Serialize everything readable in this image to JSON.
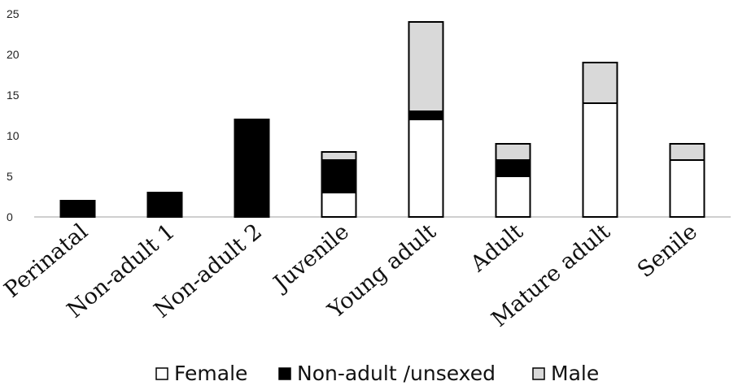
{
  "chart_data": {
    "type": "bar",
    "stacked": true,
    "categories": [
      "Perinatal",
      "Non-adult 1",
      "Non-adult 2",
      "Juvenile",
      "Young adult",
      "Adult",
      "Mature adult",
      "Senile"
    ],
    "series": [
      {
        "name": "Female",
        "color": "#ffffff",
        "values": [
          0,
          0,
          0,
          3,
          12,
          5,
          14,
          7
        ]
      },
      {
        "name": "Non-adult /unsexed",
        "color": "#000000",
        "values": [
          2,
          3,
          12,
          4,
          1,
          2,
          0,
          0
        ]
      },
      {
        "name": "Male",
        "color": "#d9d9d9",
        "values": [
          0,
          0,
          0,
          1,
          11,
          2,
          5,
          2
        ]
      }
    ],
    "ylim": [
      0,
      25
    ],
    "yticks": [
      "0",
      "5",
      "10",
      "15",
      "20",
      "25"
    ],
    "grid": false,
    "legend_position": "bottom",
    "title": "",
    "xlabel": "",
    "ylabel": ""
  }
}
